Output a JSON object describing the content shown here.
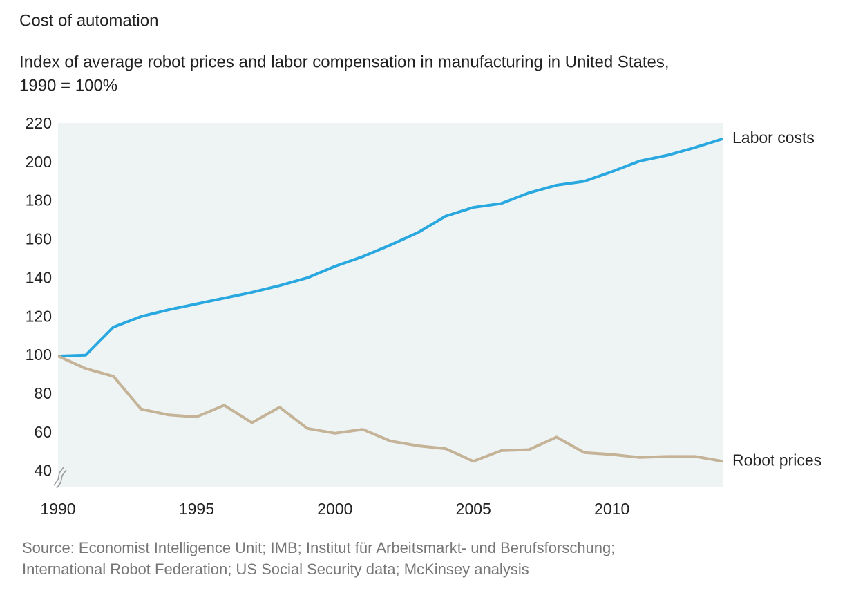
{
  "chart_data": {
    "type": "line",
    "title": "Cost of automation",
    "subtitle": [
      "Index of average robot prices and labor compensation in manufacturing in United States,",
      "1990 = 100%"
    ],
    "x": [
      1990,
      1991,
      1992,
      1993,
      1994,
      1995,
      1996,
      1997,
      1998,
      1999,
      2000,
      2001,
      2002,
      2003,
      2004,
      2005,
      2006,
      2007,
      2008,
      2009,
      2010,
      2011,
      2012,
      2013,
      2014
    ],
    "series": [
      {
        "name": "Labor costs",
        "color": "#29a8e0",
        "values": [
          100,
          100.5,
          115,
          120.5,
          124,
          127,
          130,
          133,
          136.5,
          140.5,
          146.5,
          151.5,
          157.5,
          164,
          172.5,
          177,
          179,
          184.5,
          188.5,
          190.5,
          195.5,
          201,
          204,
          208,
          212.5
        ]
      },
      {
        "name": "Robot prices",
        "color": "#c4b397",
        "values": [
          100,
          93.5,
          89.5,
          72.5,
          69.5,
          68.5,
          74.5,
          65.5,
          73.5,
          62.5,
          60,
          62,
          56,
          53.5,
          52,
          45.5,
          51,
          51.5,
          58,
          50,
          49,
          47.5,
          48,
          48,
          45.5
        ]
      }
    ],
    "xlim": [
      1990,
      2014
    ],
    "xticks": [
      1990,
      1995,
      2000,
      2005,
      2010
    ],
    "ylim": [
      32,
      220.7
    ],
    "yticks": [
      40,
      60,
      80,
      100,
      120,
      140,
      160,
      180,
      200,
      220
    ],
    "grid": false,
    "source": [
      "Source: Economist Intelligence Unit; IMB; Institut für Arbeitsmarkt- und Berufsforschung;",
      "International Robot Federation; US Social Security data; McKinsey analysis"
    ]
  }
}
